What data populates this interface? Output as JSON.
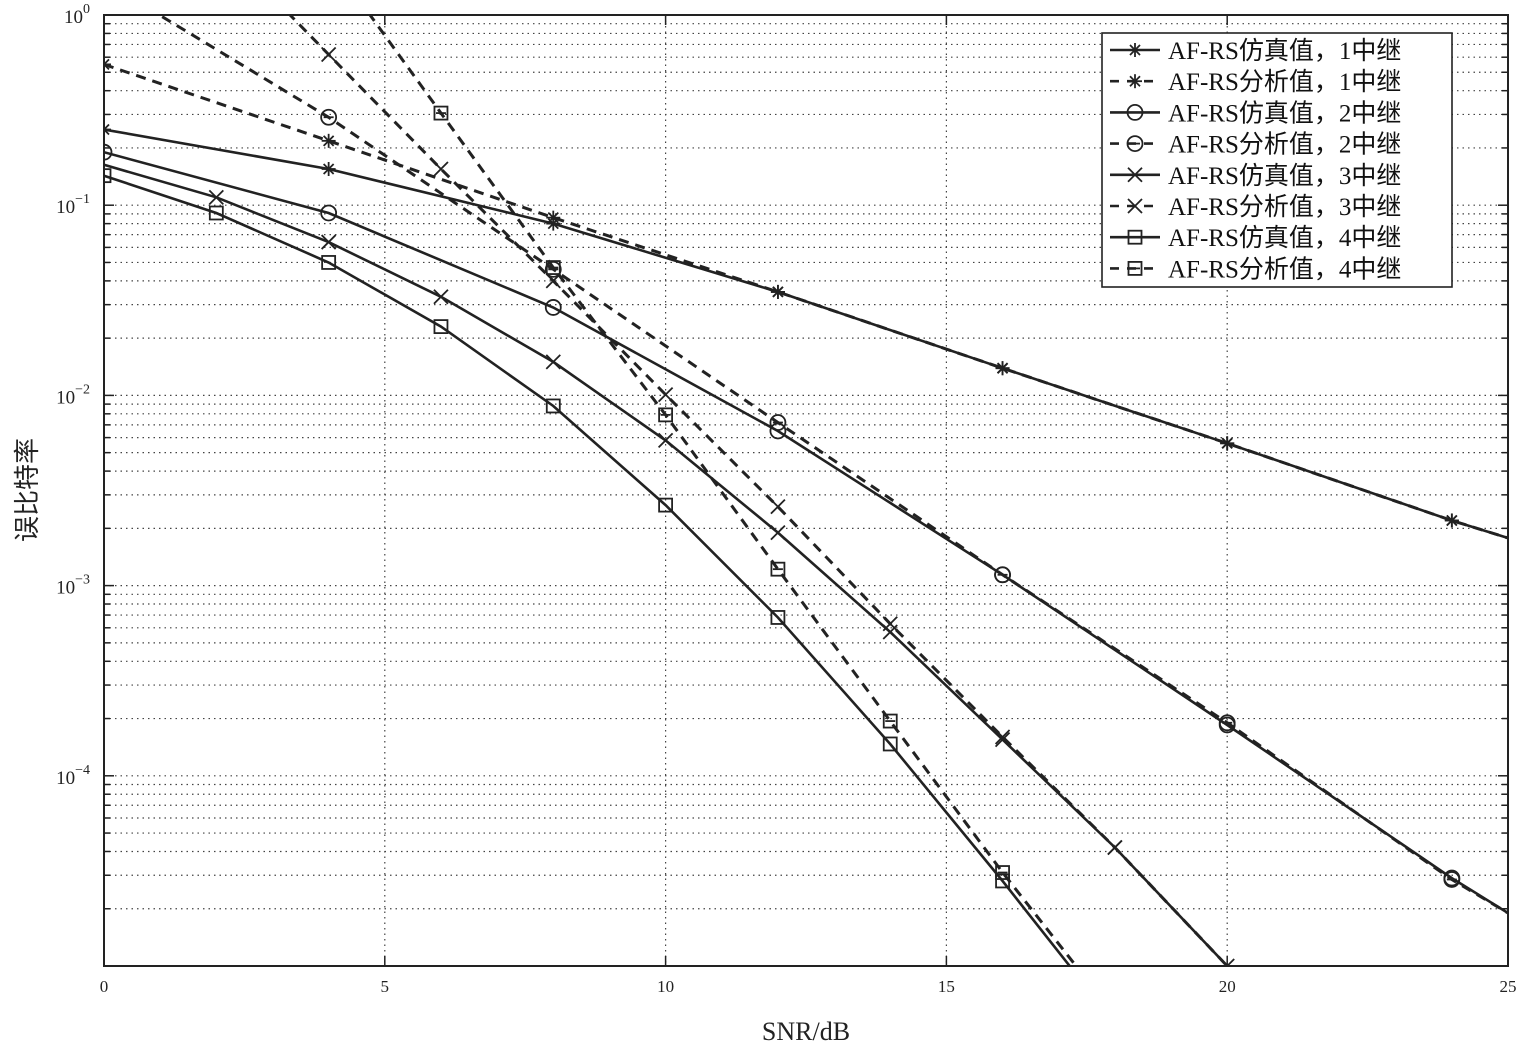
{
  "chart_data": {
    "type": "line",
    "title": "",
    "xlabel": "SNR/dB",
    "ylabel": "误比特率",
    "xlim": [
      0,
      25
    ],
    "ylim": [
      1e-05,
      1
    ],
    "yscale": "log",
    "grid": true,
    "legend_position": "top-right",
    "xticks": [
      "0",
      "5",
      "10",
      "15",
      "20",
      "25"
    ],
    "yticks": [
      {
        "base": "10",
        "exp": "0"
      },
      {
        "base": "10",
        "exp": "−1"
      },
      {
        "base": "10",
        "exp": "−2"
      },
      {
        "base": "10",
        "exp": "−3"
      },
      {
        "base": "10",
        "exp": "−4"
      }
    ],
    "series": [
      {
        "name": "AF-RS仿真值，1中继",
        "style": "solid",
        "marker": "asterisk",
        "x": [
          0,
          4,
          8,
          12,
          16,
          20,
          24,
          25
        ],
        "y": [
          0.25,
          0.155,
          0.08,
          0.035,
          0.0139,
          0.0056,
          0.0022,
          0.00178
        ],
        "markers": [
          0,
          4,
          8,
          12,
          16,
          20,
          24
        ]
      },
      {
        "name": "AF-RS分析值，1中继",
        "style": "dashed",
        "marker": "asterisk",
        "x": [
          0,
          4,
          8,
          12,
          16,
          20,
          24,
          25
        ],
        "y": [
          0.55,
          0.218,
          0.086,
          0.035,
          0.0139,
          0.0056,
          0.0022,
          0.00178
        ],
        "markers": [
          0,
          4,
          8,
          12,
          16,
          20,
          24
        ]
      },
      {
        "name": "AF-RS仿真值，2中继",
        "style": "solid",
        "marker": "circle",
        "x": [
          0,
          4,
          8,
          12,
          16,
          20,
          24,
          25
        ],
        "y": [
          0.19,
          0.091,
          0.029,
          0.0065,
          0.00114,
          0.000185,
          2.9e-05,
          1.9e-05
        ],
        "markers": [
          0,
          4,
          8,
          12,
          16,
          20,
          24
        ]
      },
      {
        "name": "AF-RS分析值，2中继",
        "style": "dashed",
        "marker": "circle-dash",
        "x": [
          0,
          4,
          8,
          12,
          16,
          20,
          24,
          25
        ],
        "y": [
          1.5,
          0.29,
          0.046,
          0.0072,
          0.00114,
          0.00019,
          2.85e-05,
          1.9e-05
        ],
        "markers": [
          4,
          8,
          12,
          16,
          20,
          24
        ]
      },
      {
        "name": "AF-RS仿真值，3中继",
        "style": "solid",
        "marker": "x",
        "x": [
          0,
          2,
          4,
          6,
          8,
          10,
          12,
          14,
          16,
          18,
          20
        ],
        "y": [
          0.163,
          0.11,
          0.064,
          0.033,
          0.015,
          0.0058,
          0.0019,
          0.00057,
          0.000155,
          4.2e-05,
          1e-05
        ],
        "markers": [
          2,
          4,
          6,
          8,
          10,
          12,
          14,
          16,
          18,
          20
        ]
      },
      {
        "name": "AF-RS分析值，3中继",
        "style": "dashed",
        "marker": "x",
        "x": [
          2,
          4,
          6,
          8,
          10,
          12,
          14,
          16,
          18,
          20
        ],
        "y": [
          2.5,
          0.62,
          0.155,
          0.04,
          0.0101,
          0.0026,
          0.00063,
          0.00016,
          4.2e-05,
          1e-05
        ],
        "markers": [
          4,
          6,
          8,
          10,
          12,
          14,
          16,
          18
        ]
      },
      {
        "name": "AF-RS仿真值，4中继",
        "style": "solid",
        "marker": "square",
        "x": [
          0,
          2,
          4,
          6,
          8,
          10,
          12,
          14,
          16,
          18
        ],
        "y": [
          0.143,
          0.091,
          0.05,
          0.023,
          0.0088,
          0.00265,
          0.00068,
          0.000147,
          2.8e-05,
          5e-06
        ],
        "markers": [
          0,
          2,
          4,
          6,
          8,
          10,
          12,
          14,
          16
        ]
      },
      {
        "name": "AF-RS分析值，4中继",
        "style": "dashed",
        "marker": "square-dash",
        "x": [
          4,
          6,
          8,
          10,
          12,
          14,
          16,
          18
        ],
        "y": [
          2.0,
          0.305,
          0.047,
          0.0079,
          0.00122,
          0.000194,
          3.1e-05,
          5.5e-06
        ],
        "markers": [
          6,
          8,
          10,
          12,
          14,
          16
        ]
      }
    ]
  }
}
